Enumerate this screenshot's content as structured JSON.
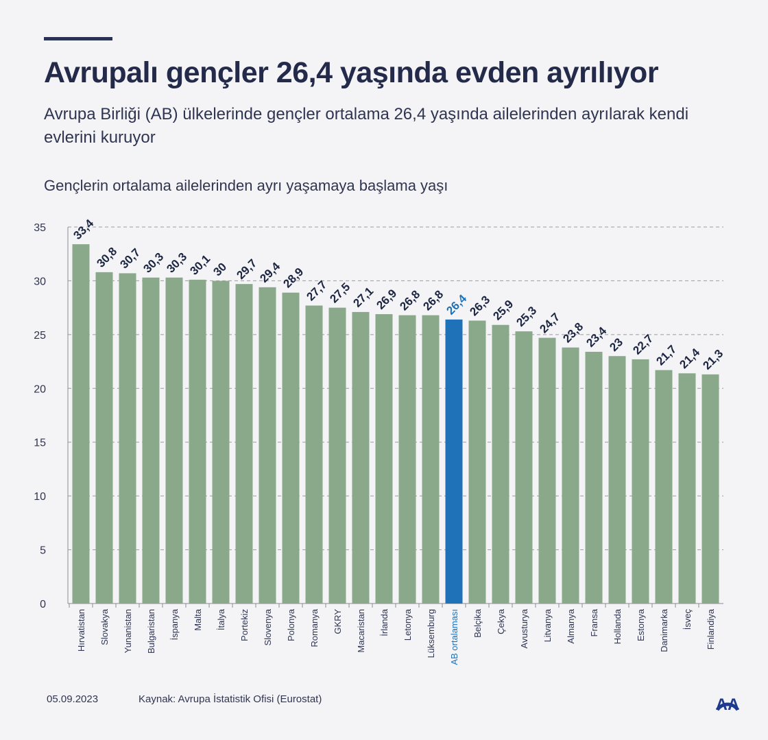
{
  "header": {
    "title": "Avrupalı gençler 26,4 yaşında evden ayrılıyor",
    "subtitle": "Avrupa Birliği (AB) ülkelerinde gençler ortalama 26,4 yaşında ailelerinden ayrılarak kendi evlerini kuruyor"
  },
  "chart_data": {
    "type": "bar",
    "title": "Gençlerin ortalama ailelerinden ayrı yaşamaya başlama yaşı",
    "categories": [
      "Hırvatistan",
      "Slovakya",
      "Yunanistan",
      "Bulgaristan",
      "İspanya",
      "Malta",
      "İtalya",
      "Portekiz",
      "Slovenya",
      "Polonya",
      "Romanya",
      "GKRY",
      "Macaristan",
      "İrlanda",
      "Letonya",
      "Lüksemburg",
      "AB ortalaması",
      "Belçika",
      "Çekya",
      "Avusturya",
      "Litvanya",
      "Almanya",
      "Fransa",
      "Hollanda",
      "Estonya",
      "Danimarka",
      "İsveç",
      "Finlandiya"
    ],
    "values": [
      33.4,
      30.8,
      30.7,
      30.3,
      30.3,
      30.1,
      30,
      29.7,
      29.4,
      28.9,
      27.7,
      27.5,
      27.1,
      26.9,
      26.8,
      26.8,
      26.4,
      26.3,
      25.9,
      25.3,
      24.7,
      23.8,
      23.4,
      23,
      22.7,
      21.7,
      21.4,
      21.3
    ],
    "value_labels": [
      "33,4",
      "30,8",
      "30,7",
      "30,3",
      "30,3",
      "30,1",
      "30",
      "29,7",
      "29,4",
      "28,9",
      "27,7",
      "27,5",
      "27,1",
      "26,9",
      "26,8",
      "26,8",
      "26,4",
      "26,3",
      "25,9",
      "25,3",
      "24,7",
      "23,8",
      "23,4",
      "23",
      "22,7",
      "21,7",
      "21,4",
      "21,3"
    ],
    "highlight": "AB ortalaması",
    "ylim": [
      0,
      35
    ],
    "yticks": [
      "0",
      "5",
      "10",
      "15",
      "20",
      "25",
      "30",
      "35"
    ],
    "grid": true,
    "colors": {
      "bar": "#8aa88a",
      "highlight": "#1f72b8",
      "label": "#1c2541"
    }
  },
  "footer": {
    "date": "05.09.2023",
    "source": "Kaynak: Avrupa İstatistik Ofisi (Eurostat)",
    "logo": "AA"
  }
}
